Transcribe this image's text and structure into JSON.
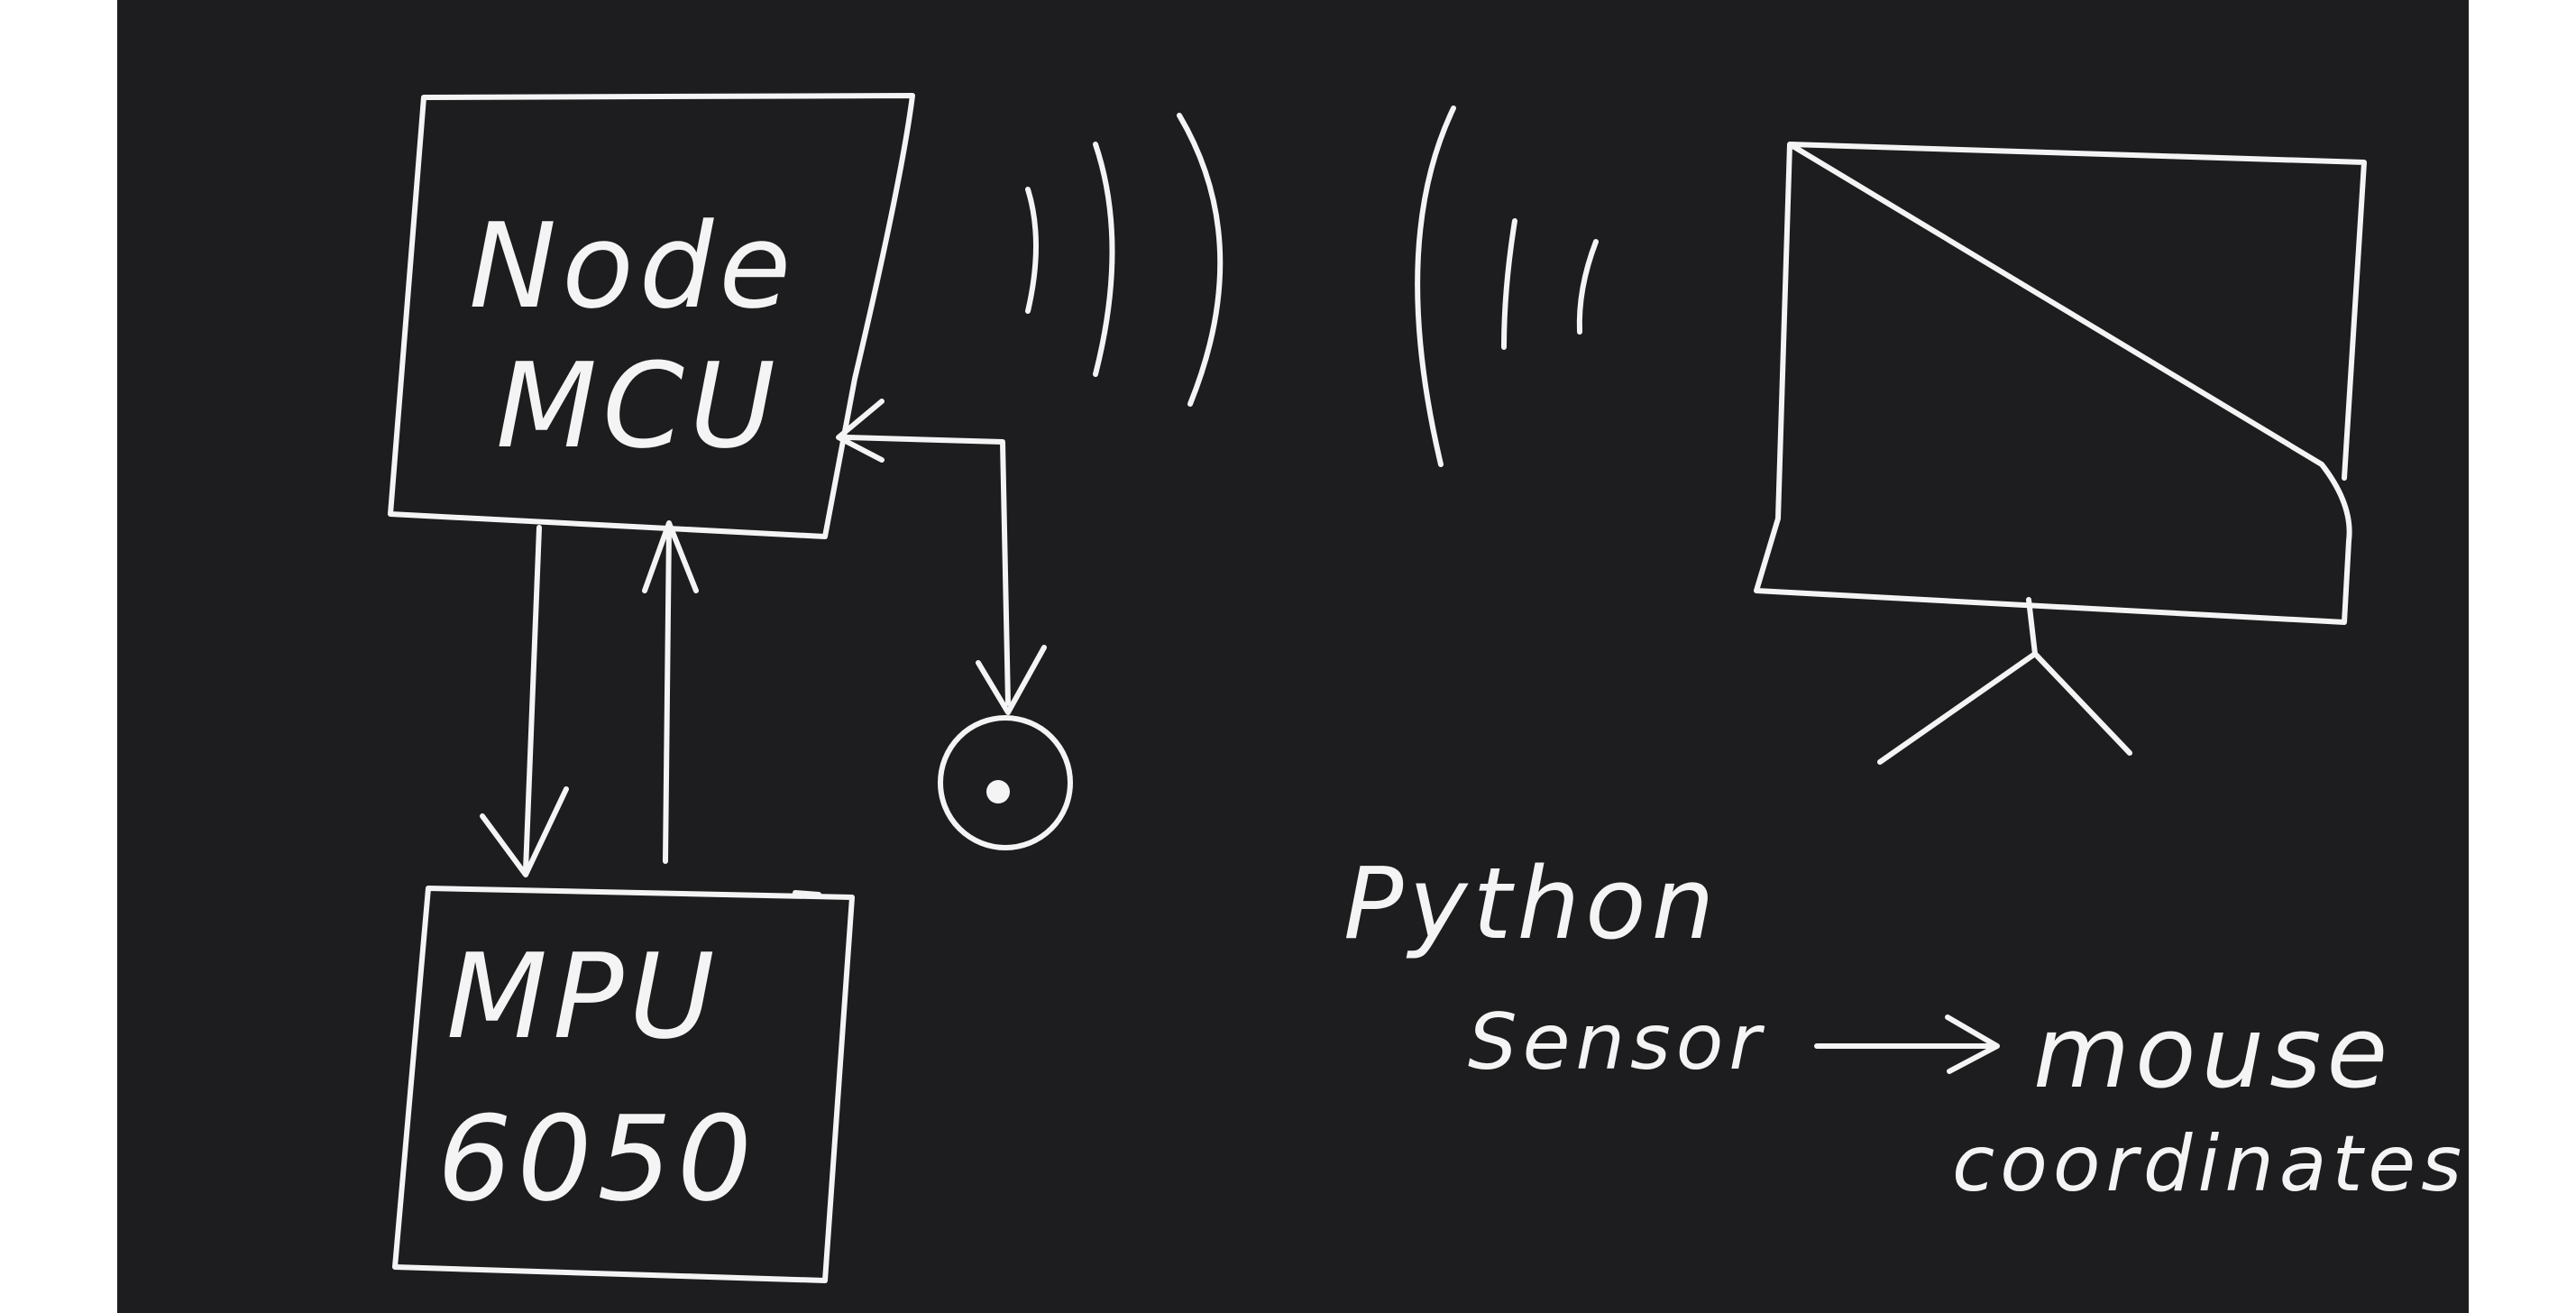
{
  "node_mcu": {
    "line1": "Node",
    "line2": "MCU"
  },
  "mpu": {
    "line1": "MPU",
    "line2": "6050"
  },
  "python": {
    "label": "Python"
  },
  "flow": {
    "source": "Sensor",
    "target_line1": "mouse",
    "target_line2": "coordinates"
  },
  "colors": {
    "board": "#1d1d1f",
    "ink": "#f4f4f4",
    "page": "#ffffff"
  },
  "icons": [
    "signal-waves-icon",
    "button-icon",
    "projection-screen-icon",
    "arrow-icon"
  ]
}
